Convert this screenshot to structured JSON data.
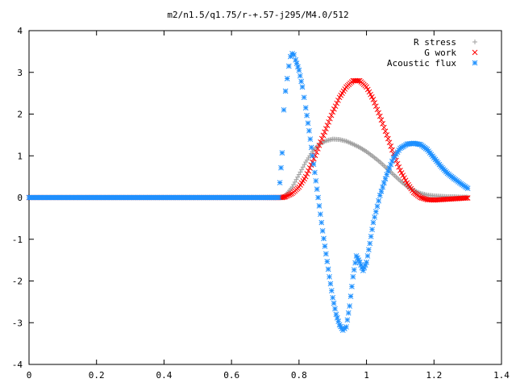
{
  "chart_data": {
    "type": "scatter",
    "title": "m2/n1.5/q1.75/r-+.57-j295/M4.0/512",
    "xlabel": "",
    "ylabel": "",
    "xlim": [
      0,
      1.4
    ],
    "ylim": [
      -4,
      4
    ],
    "x_ticks": [
      "0",
      "0.2",
      "0.4",
      "0.6",
      "0.8",
      "1",
      "1.2",
      "1.4"
    ],
    "y_ticks": [
      "4",
      "3",
      "2",
      "1",
      "0",
      "-1",
      "-2",
      "-3",
      "-4"
    ],
    "grid": false,
    "legend_position": "top-right",
    "series": [
      {
        "name": "R stress",
        "marker": "+",
        "color": "#a0a0a0",
        "points": [
          [
            0.0,
            0
          ],
          [
            0.1,
            0
          ],
          [
            0.2,
            0
          ],
          [
            0.3,
            0
          ],
          [
            0.4,
            0
          ],
          [
            0.5,
            0
          ],
          [
            0.6,
            0
          ],
          [
            0.7,
            0
          ],
          [
            0.75,
            0
          ],
          [
            0.76,
            0.05
          ],
          [
            0.78,
            0.25
          ],
          [
            0.8,
            0.55
          ],
          [
            0.82,
            0.85
          ],
          [
            0.84,
            1.1
          ],
          [
            0.86,
            1.28
          ],
          [
            0.88,
            1.36
          ],
          [
            0.9,
            1.4
          ],
          [
            0.92,
            1.39
          ],
          [
            0.94,
            1.35
          ],
          [
            0.96,
            1.28
          ],
          [
            0.98,
            1.2
          ],
          [
            1.0,
            1.1
          ],
          [
            1.02,
            0.98
          ],
          [
            1.04,
            0.85
          ],
          [
            1.06,
            0.7
          ],
          [
            1.08,
            0.55
          ],
          [
            1.1,
            0.4
          ],
          [
            1.12,
            0.27
          ],
          [
            1.14,
            0.17
          ],
          [
            1.16,
            0.1
          ],
          [
            1.18,
            0.06
          ],
          [
            1.2,
            0.04
          ],
          [
            1.22,
            0.03
          ],
          [
            1.24,
            0.02
          ],
          [
            1.26,
            0.02
          ],
          [
            1.28,
            0.01
          ],
          [
            1.3,
            0.01
          ]
        ]
      },
      {
        "name": "G work",
        "marker": "x",
        "color": "#ff0000",
        "points": [
          [
            0.0,
            0
          ],
          [
            0.1,
            0
          ],
          [
            0.2,
            0
          ],
          [
            0.3,
            0
          ],
          [
            0.4,
            0
          ],
          [
            0.5,
            0
          ],
          [
            0.6,
            0
          ],
          [
            0.7,
            0
          ],
          [
            0.75,
            0
          ],
          [
            0.76,
            0.02
          ],
          [
            0.78,
            0.1
          ],
          [
            0.8,
            0.25
          ],
          [
            0.82,
            0.5
          ],
          [
            0.84,
            0.85
          ],
          [
            0.86,
            1.25
          ],
          [
            0.88,
            1.65
          ],
          [
            0.9,
            2.05
          ],
          [
            0.92,
            2.4
          ],
          [
            0.94,
            2.65
          ],
          [
            0.96,
            2.8
          ],
          [
            0.98,
            2.8
          ],
          [
            1.0,
            2.65
          ],
          [
            1.02,
            2.35
          ],
          [
            1.04,
            1.95
          ],
          [
            1.06,
            1.5
          ],
          [
            1.08,
            1.05
          ],
          [
            1.1,
            0.65
          ],
          [
            1.12,
            0.35
          ],
          [
            1.14,
            0.12
          ],
          [
            1.16,
            0.0
          ],
          [
            1.18,
            -0.05
          ],
          [
            1.2,
            -0.06
          ],
          [
            1.22,
            -0.05
          ],
          [
            1.24,
            -0.04
          ],
          [
            1.26,
            -0.03
          ],
          [
            1.28,
            -0.02
          ],
          [
            1.3,
            -0.01
          ]
        ]
      },
      {
        "name": "Acoustic flux",
        "marker": "*",
        "color": "#1e90ff",
        "points": [
          [
            0.0,
            0
          ],
          [
            0.1,
            0
          ],
          [
            0.2,
            0
          ],
          [
            0.3,
            0
          ],
          [
            0.4,
            0
          ],
          [
            0.5,
            0
          ],
          [
            0.6,
            0
          ],
          [
            0.7,
            0
          ],
          [
            0.74,
            0
          ],
          [
            0.75,
            1.07
          ],
          [
            0.755,
            2.1
          ],
          [
            0.76,
            2.55
          ],
          [
            0.765,
            2.85
          ],
          [
            0.77,
            3.15
          ],
          [
            0.775,
            3.38
          ],
          [
            0.78,
            3.45
          ],
          [
            0.785,
            3.42
          ],
          [
            0.79,
            3.3
          ],
          [
            0.8,
            3.05
          ],
          [
            0.81,
            2.65
          ],
          [
            0.82,
            2.15
          ],
          [
            0.83,
            1.6
          ],
          [
            0.84,
            1.0
          ],
          [
            0.85,
            0.4
          ],
          [
            0.86,
            -0.2
          ],
          [
            0.87,
            -0.8
          ],
          [
            0.88,
            -1.35
          ],
          [
            0.89,
            -1.9
          ],
          [
            0.9,
            -2.4
          ],
          [
            0.91,
            -2.8
          ],
          [
            0.92,
            -3.05
          ],
          [
            0.93,
            -3.18
          ],
          [
            0.94,
            -3.1
          ],
          [
            0.95,
            -2.6
          ],
          [
            0.96,
            -1.9
          ],
          [
            0.97,
            -1.4
          ],
          [
            0.98,
            -1.55
          ],
          [
            0.99,
            -1.75
          ],
          [
            1.0,
            -1.55
          ],
          [
            1.01,
            -1.1
          ],
          [
            1.02,
            -0.6
          ],
          [
            1.04,
            0.05
          ],
          [
            1.06,
            0.55
          ],
          [
            1.08,
            0.95
          ],
          [
            1.1,
            1.18
          ],
          [
            1.12,
            1.28
          ],
          [
            1.14,
            1.3
          ],
          [
            1.16,
            1.27
          ],
          [
            1.18,
            1.15
          ],
          [
            1.2,
            0.95
          ],
          [
            1.22,
            0.75
          ],
          [
            1.24,
            0.58
          ],
          [
            1.26,
            0.45
          ],
          [
            1.28,
            0.33
          ],
          [
            1.3,
            0.22
          ]
        ]
      }
    ]
  }
}
